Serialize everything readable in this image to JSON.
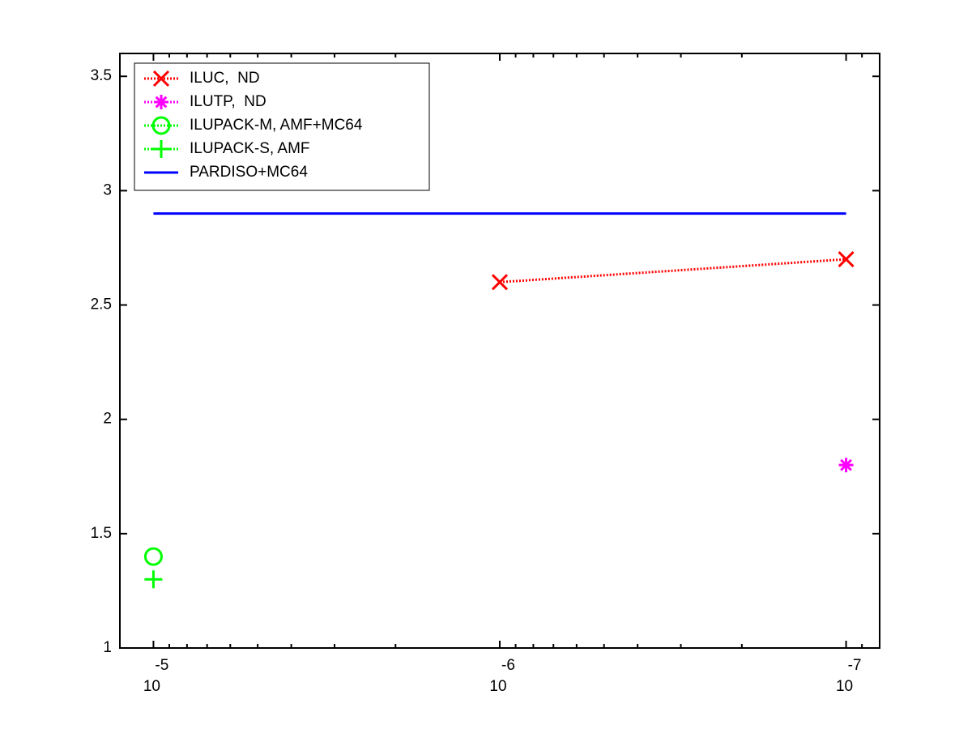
{
  "chart_data": {
    "type": "line",
    "xscale": "log",
    "xreversed": true,
    "xlim": [
      1.25e-05,
      8e-08
    ],
    "xticks": [
      {
        "value": 1e-05,
        "label": "10",
        "exponent": "-5"
      },
      {
        "value": 1e-06,
        "label": "10",
        "exponent": "-6"
      },
      {
        "value": 1e-07,
        "label": "10",
        "exponent": "-7"
      }
    ],
    "ylim": [
      1,
      3.6
    ],
    "yticks": [
      1,
      1.5,
      2,
      2.5,
      3,
      3.5
    ],
    "grid": false,
    "legend": "upper left",
    "series": [
      {
        "name": "ILUC,  ND",
        "color": "#ff0000",
        "marker": "x",
        "linestyle": "dotted",
        "x": [
          1e-06,
          1e-07
        ],
        "values": [
          2.6,
          2.7
        ]
      },
      {
        "name": "ILUTP,  ND",
        "color": "#ff00ff",
        "marker": "asterisk",
        "linestyle": "dotted",
        "x": [
          1e-07
        ],
        "values": [
          1.8
        ]
      },
      {
        "name": "ILUPACK-M, AMF+MC64",
        "color": "#00ff00",
        "marker": "circle",
        "linestyle": "dotted",
        "x": [
          1e-05
        ],
        "values": [
          1.4
        ]
      },
      {
        "name": "ILUPACK-S, AMF",
        "color": "#00ff00",
        "marker": "plus",
        "linestyle": "dotted",
        "x": [
          1e-05
        ],
        "values": [
          1.3
        ]
      },
      {
        "name": "PARDISO+MC64",
        "color": "#0000ff",
        "marker": "none",
        "linestyle": "solid",
        "x": [
          1e-05,
          1e-07
        ],
        "values": [
          2.9,
          2.9
        ]
      }
    ]
  }
}
